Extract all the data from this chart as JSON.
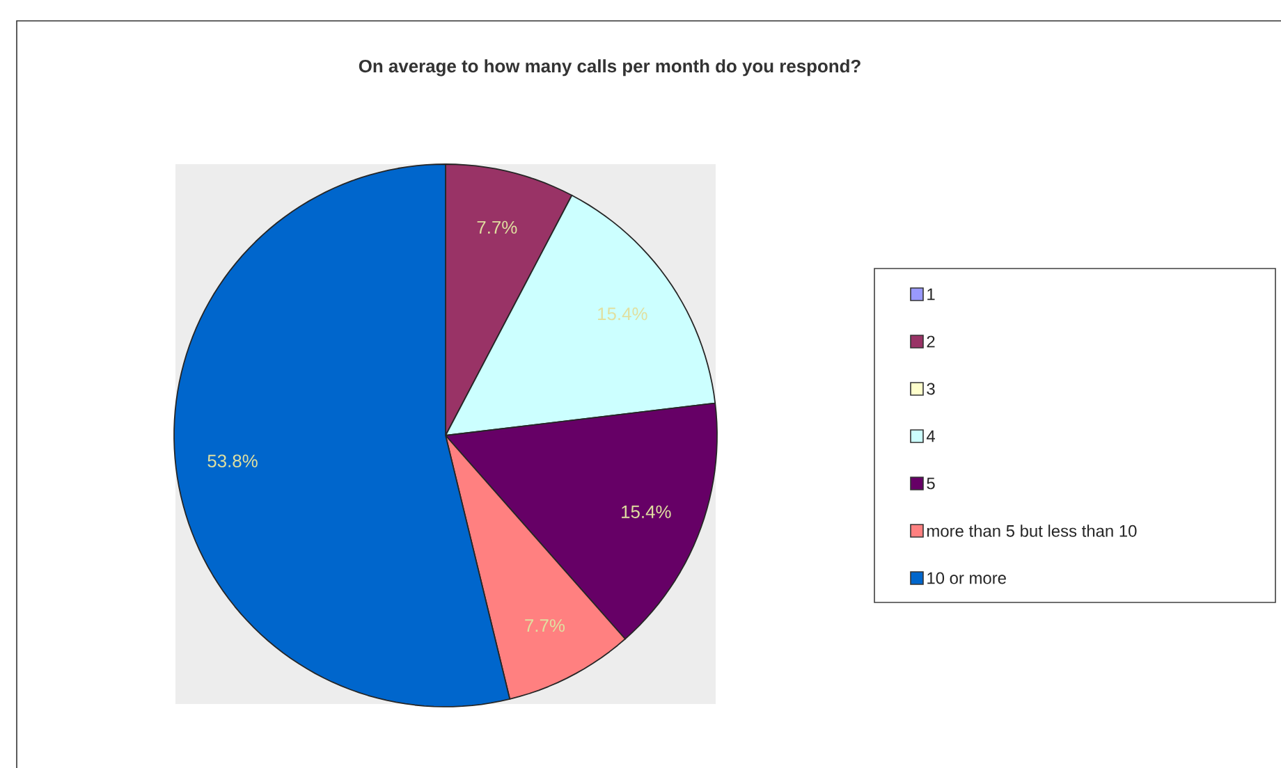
{
  "chart_data": {
    "type": "pie",
    "title": "On average to how many calls per month do you respond?",
    "categories": [
      "1",
      "2",
      "3",
      "4",
      "5",
      "more than 5 but less than 10",
      "10 or more"
    ],
    "values": [
      0,
      7.7,
      0,
      15.4,
      15.4,
      7.7,
      53.8
    ],
    "value_labels": [
      null,
      "7.7%",
      null,
      "15.4%",
      "15.4%",
      "7.7%",
      "53.8%"
    ],
    "colors": [
      "#9999ff",
      "#993366",
      "#ffffcc",
      "#ccffff",
      "#660066",
      "#ff8080",
      "#0066cc"
    ],
    "legend": "right"
  }
}
